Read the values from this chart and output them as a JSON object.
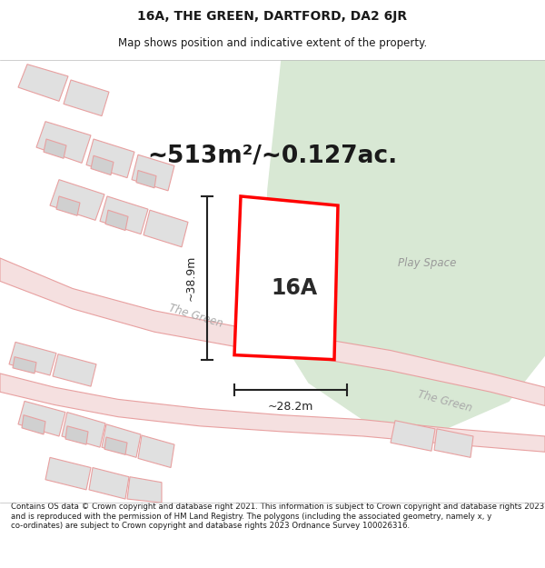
{
  "title": "16A, THE GREEN, DARTFORD, DA2 6JR",
  "subtitle": "Map shows position and indicative extent of the property.",
  "footer": "Contains OS data © Crown copyright and database right 2021. This information is subject to Crown copyright and database rights 2023 and is reproduced with the permission of HM Land Registry. The polygons (including the associated geometry, namely x, y co-ordinates) are subject to Crown copyright and database rights 2023 Ordnance Survey 100026316.",
  "area_label": "~513m²/~0.127ac.",
  "label_16A": "16A",
  "play_space_label": "Play Space",
  "the_green_label": "The Green",
  "the_green_label2": "The Green",
  "dim_height": "~38.9m",
  "dim_width": "~28.2m",
  "background_color": "#ffffff",
  "map_bg_color": "#f2f2f2",
  "green_area_color": "#d8e8d4",
  "building_outline_color": "#e8a0a0",
  "building_fill_color": "#e0e0e0",
  "property_outline_color": "#ff0000",
  "property_fill_color": "#ffffff",
  "dim_line_color": "#222222",
  "title_color": "#1a1a1a",
  "footer_color": "#1a1a1a",
  "road_fill_color": "#f5e0e0",
  "road_edge_color": "#e8a0a0"
}
